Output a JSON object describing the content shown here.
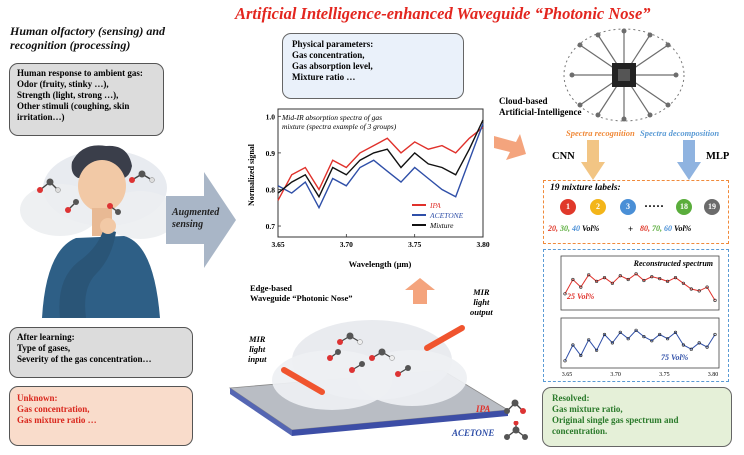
{
  "title": "Artificial Intelligence-enhanced Waveguide “Photonic Nose”",
  "left": {
    "heading_line1": "Human olfactory (sensing) and",
    "heading_line2": "recognition (processing)",
    "response_box": {
      "lines": [
        "Human response to ambient gas:",
        "Odor (fruity, stinky …),",
        "Strength (light, strong …),",
        "Other stimuli (coughing, skin",
        "irritation…)"
      ]
    },
    "learning_box": {
      "lines": [
        "After learning:",
        "Type of gases,",
        "Severity of the gas concentration…"
      ]
    },
    "unknown_box": {
      "lines": [
        "Unknown:",
        "Gas concentration,",
        "Gas mixture ratio …"
      ]
    },
    "arrow_label_line1": "Augmented",
    "arrow_label_line2": "sensing"
  },
  "center": {
    "params_box": {
      "lines": [
        "Physical parameters:",
        "Gas concentration,",
        "Gas absorption level,",
        "Mixture ratio …"
      ]
    },
    "chart_caption_line1": "Mid-IR absorption spectra of gas",
    "chart_caption_line2": "mixture (spectra example of 3 groups)",
    "waveguide_label_line1": "Edge-based",
    "waveguide_label_line2": "Waveguide “Photonic Nose”",
    "mir_input": [
      "MIR",
      "light",
      "input"
    ],
    "mir_output": [
      "MIR",
      "light",
      "output"
    ],
    "legend_ipa": "IPA",
    "legend_acetone": "ACETONE"
  },
  "right": {
    "cloud_label_line1": "Cloud-based",
    "cloud_label_line2": "Artificial-Intelligence",
    "spectra_recognition": "Spectra recognition",
    "spectra_decomposition": "Spectra decomposition",
    "cnn": "CNN",
    "mlp": "MLP",
    "mixture_labels_title": "19 mixture labels:",
    "circle_labels": [
      "1",
      "2",
      "3",
      "18",
      "19"
    ],
    "circle_colors": [
      "#e0392b",
      "#f3b51a",
      "#4a8fd6",
      "#5aad3c",
      "#6b6b6b"
    ],
    "dots": "·····",
    "vol_left": {
      "a": "20,",
      "b": "30,",
      "c": "40",
      "unit": "Vol%"
    },
    "vol_left_plus": "+",
    "vol_right": {
      "a": "80,",
      "b": "70,",
      "c": "60",
      "unit": "Vol%"
    },
    "reconstructed_title": "Reconstructed spectrum",
    "vol25": "25 Vol%",
    "vol75": "75 Vol%",
    "resolved_box": {
      "lines": [
        "Resolved:",
        "Gas mixture ratio,",
        "Original single gas spectrum and",
        "concentration."
      ]
    }
  },
  "colors": {
    "title_red": "#e3261f",
    "ipa_red": "#e0312b",
    "acetone_blue": "#2f4fa8",
    "orange": "#f08a3a",
    "blue_light": "#5b9bd5"
  },
  "chart_data": [
    {
      "type": "line",
      "title": "",
      "xlabel": "Wavelength (μm)",
      "ylabel": "Normalized signal",
      "xlim": [
        3.65,
        3.8
      ],
      "ylim": [
        0.67,
        1.02
      ],
      "xticks": [
        "3.65",
        "3.70",
        "3.75",
        "3.80"
      ],
      "yticks": [
        "0.7",
        "0.8",
        "0.9",
        "1.0"
      ],
      "legend": "bottom-right",
      "series": [
        {
          "name": "IPA",
          "color": "#e0312b",
          "x": [
            3.65,
            3.66,
            3.67,
            3.68,
            3.69,
            3.7,
            3.71,
            3.72,
            3.73,
            3.74,
            3.75,
            3.76,
            3.77,
            3.78,
            3.79,
            3.8
          ],
          "y": [
            0.77,
            0.84,
            0.86,
            0.8,
            0.88,
            0.86,
            0.9,
            0.92,
            0.94,
            0.9,
            0.93,
            0.91,
            0.92,
            0.9,
            0.94,
            0.97
          ]
        },
        {
          "name": "ACETONE",
          "color": "#2f4fa8",
          "x": [
            3.65,
            3.66,
            3.67,
            3.68,
            3.69,
            3.7,
            3.71,
            3.72,
            3.73,
            3.74,
            3.75,
            3.76,
            3.77,
            3.78,
            3.79,
            3.8
          ],
          "y": [
            0.81,
            0.79,
            0.82,
            0.75,
            0.83,
            0.81,
            0.86,
            0.88,
            0.85,
            0.82,
            0.86,
            0.83,
            0.8,
            0.78,
            0.88,
            0.98
          ]
        },
        {
          "name": "Mixture",
          "color": "#111111",
          "x": [
            3.65,
            3.66,
            3.67,
            3.68,
            3.69,
            3.7,
            3.71,
            3.72,
            3.73,
            3.74,
            3.75,
            3.76,
            3.77,
            3.78,
            3.79,
            3.8
          ],
          "y": [
            0.79,
            0.82,
            0.84,
            0.78,
            0.86,
            0.84,
            0.88,
            0.9,
            0.91,
            0.86,
            0.9,
            0.87,
            0.86,
            0.84,
            0.91,
            0.99
          ]
        }
      ]
    },
    {
      "type": "line",
      "title": "Reconstructed spectrum",
      "series": [
        {
          "x": [
            1,
            2,
            3,
            4,
            5,
            6,
            7,
            8,
            9,
            10,
            11,
            12,
            13,
            14,
            15,
            16,
            17,
            18,
            19,
            20
          ],
          "y": [
            0.55,
            0.7,
            0.62,
            0.75,
            0.68,
            0.72,
            0.66,
            0.74,
            0.7,
            0.76,
            0.69,
            0.73,
            0.71,
            0.68,
            0.72,
            0.66,
            0.6,
            0.58,
            0.62,
            0.48
          ]
        }
      ]
    },
    {
      "type": "line",
      "xticks": [
        "3.65",
        "3.70",
        "3.75",
        "3.80"
      ],
      "series": [
        {
          "x": [
            1,
            2,
            3,
            4,
            5,
            6,
            7,
            8,
            9,
            10,
            11,
            12,
            13,
            14,
            15,
            16,
            17,
            18,
            19,
            20
          ],
          "y": [
            0.45,
            0.6,
            0.5,
            0.65,
            0.55,
            0.7,
            0.62,
            0.72,
            0.66,
            0.74,
            0.68,
            0.64,
            0.7,
            0.66,
            0.72,
            0.6,
            0.56,
            0.62,
            0.58,
            0.7
          ]
        }
      ]
    }
  ]
}
